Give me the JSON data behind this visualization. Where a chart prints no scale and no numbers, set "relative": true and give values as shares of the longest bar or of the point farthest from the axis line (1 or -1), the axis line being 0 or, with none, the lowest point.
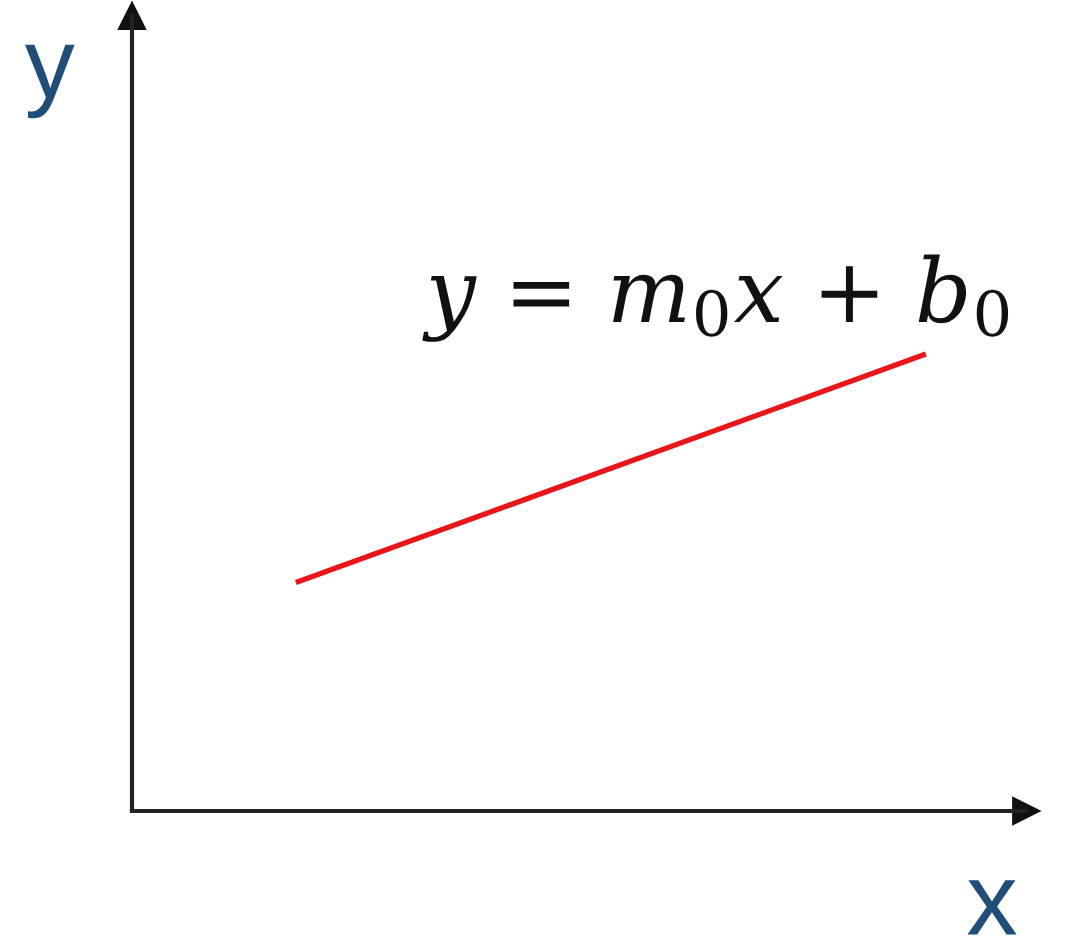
{
  "chart_data": {
    "type": "line",
    "xlabel": "x",
    "ylabel": "y",
    "categories": [
      null,
      null
    ],
    "relative": true,
    "series": [
      {
        "name": "y = m$_{0}$x + b$_{0}$",
        "color": "#e8161b",
        "values": [
          0.5,
          1
        ]
      }
    ]
  }
}
